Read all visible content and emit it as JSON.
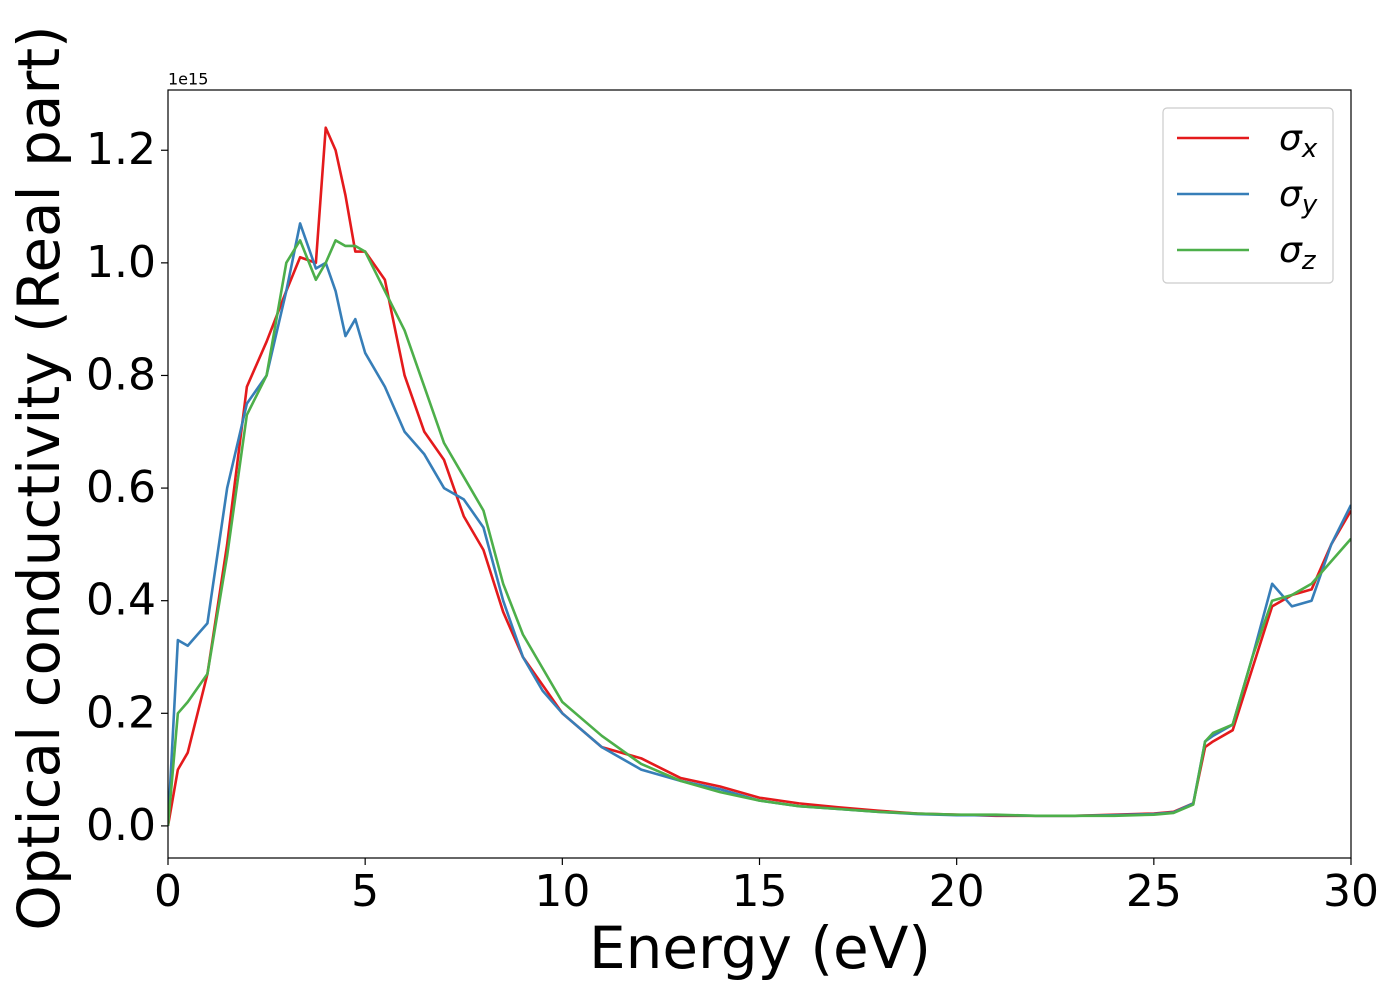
{
  "chart_data": {
    "type": "line",
    "xlabel": "Energy (eV)",
    "ylabel": "Optical conductivity (Real part)",
    "y_offset_label": "1e15",
    "x": [
      0,
      0.25,
      0.5,
      1,
      1.5,
      2,
      2.5,
      3,
      3.35,
      3.75,
      4,
      4.25,
      4.5,
      4.75,
      5,
      5.5,
      6,
      6.5,
      7,
      7.5,
      8,
      8.5,
      9,
      9.5,
      10,
      11,
      12,
      13,
      14,
      15,
      16,
      17,
      18,
      19,
      20,
      21,
      22,
      23,
      24,
      25,
      25.5,
      26,
      26.3,
      26.5,
      27,
      27.5,
      28,
      28.5,
      29,
      29.5,
      30
    ],
    "series": [
      {
        "name": "σx",
        "color": "#e41a1c",
        "values": [
          0,
          0.1,
          0.13,
          0.27,
          0.5,
          0.78,
          0.86,
          0.95,
          1.01,
          1.0,
          1.24,
          1.2,
          1.12,
          1.02,
          1.02,
          0.97,
          0.8,
          0.7,
          0.65,
          0.55,
          0.49,
          0.38,
          0.3,
          0.25,
          0.2,
          0.14,
          0.12,
          0.085,
          0.07,
          0.05,
          0.04,
          0.033,
          0.027,
          0.022,
          0.02,
          0.018,
          0.018,
          0.018,
          0.02,
          0.022,
          0.025,
          0.04,
          0.14,
          0.15,
          0.17,
          0.28,
          0.39,
          0.41,
          0.42,
          0.5,
          0.56
        ]
      },
      {
        "name": "σy",
        "color": "#377eb8",
        "values": [
          0,
          0.33,
          0.32,
          0.36,
          0.6,
          0.75,
          0.8,
          0.95,
          1.07,
          0.99,
          1.0,
          0.95,
          0.87,
          0.9,
          0.84,
          0.78,
          0.7,
          0.66,
          0.6,
          0.58,
          0.53,
          0.4,
          0.3,
          0.24,
          0.2,
          0.14,
          0.1,
          0.08,
          0.065,
          0.045,
          0.035,
          0.03,
          0.025,
          0.021,
          0.019,
          0.019,
          0.018,
          0.018,
          0.019,
          0.021,
          0.024,
          0.04,
          0.15,
          0.16,
          0.18,
          0.3,
          0.43,
          0.39,
          0.4,
          0.5,
          0.57
        ]
      },
      {
        "name": "σz",
        "color": "#4daf4a",
        "values": [
          0,
          0.2,
          0.22,
          0.27,
          0.48,
          0.73,
          0.8,
          1.0,
          1.04,
          0.97,
          1.0,
          1.04,
          1.03,
          1.03,
          1.02,
          0.95,
          0.88,
          0.78,
          0.68,
          0.62,
          0.56,
          0.43,
          0.34,
          0.28,
          0.22,
          0.16,
          0.11,
          0.08,
          0.06,
          0.045,
          0.035,
          0.03,
          0.025,
          0.022,
          0.02,
          0.02,
          0.018,
          0.018,
          0.018,
          0.02,
          0.023,
          0.038,
          0.15,
          0.165,
          0.18,
          0.3,
          0.4,
          0.41,
          0.43,
          0.47,
          0.51
        ]
      }
    ],
    "xlim": [
      0,
      30
    ],
    "xticks": [
      0,
      5,
      10,
      15,
      20,
      25,
      30
    ],
    "ylim": [
      -0.057,
      1.307
    ],
    "yticks": [
      {
        "value": 0,
        "label": "0.0"
      },
      0.2,
      0.4,
      0.6,
      0.8,
      {
        "value": 1,
        "label": "1.0"
      },
      1.2
    ],
    "legend": "upper right"
  }
}
